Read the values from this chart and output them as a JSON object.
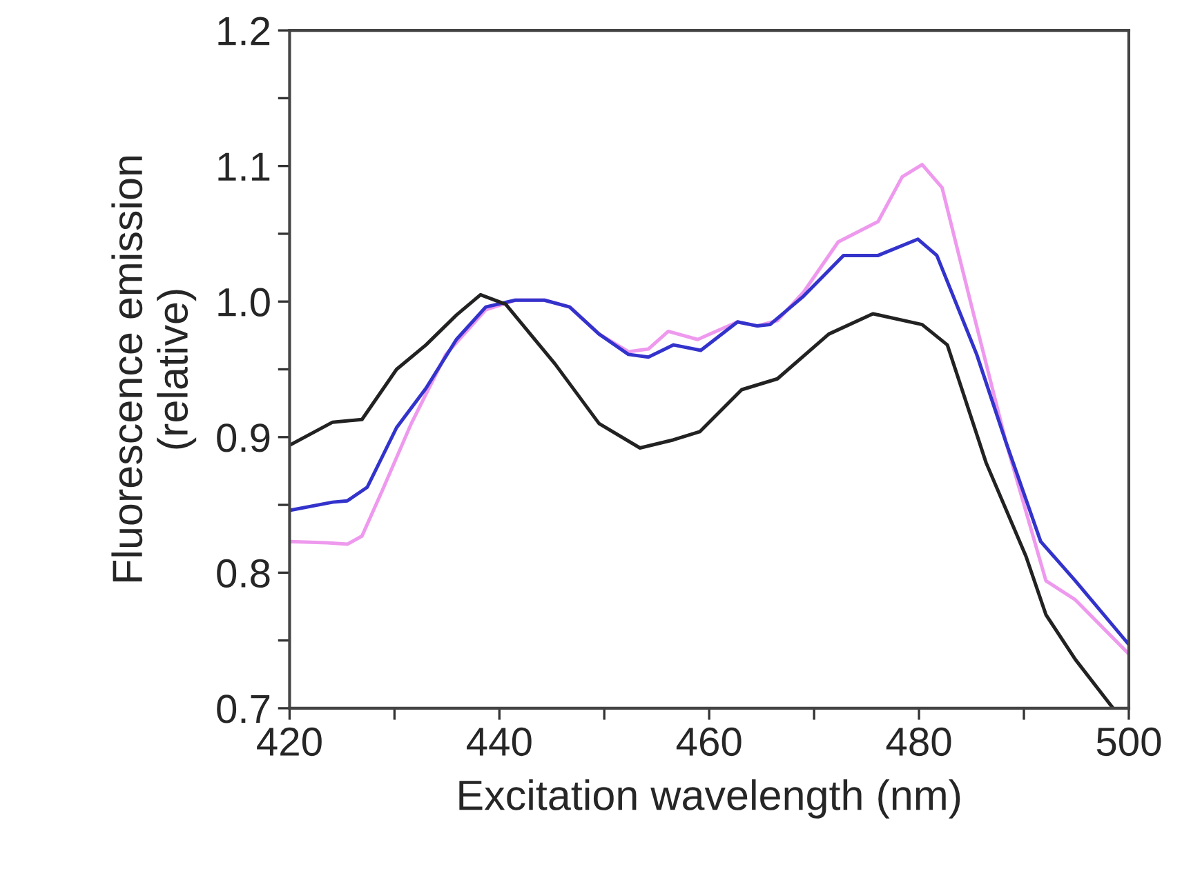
{
  "chart_data": {
    "type": "line",
    "xlabel": "Excitation wavelength (nm)",
    "ylabel": "Fluorescence emission\n(relative)",
    "xlim": [
      420,
      500
    ],
    "ylim": [
      0.7,
      1.2
    ],
    "xticks": [
      420,
      {
        "value": 430,
        "label": null
      },
      440,
      {
        "value": 450,
        "label": null
      },
      460,
      {
        "value": 470,
        "label": null
      },
      480,
      {
        "value": 490,
        "label": null
      },
      500
    ],
    "yticks": [
      {
        "value": 0.7,
        "label": "0.7"
      },
      {
        "value": 0.75,
        "label": null
      },
      {
        "value": 0.8,
        "label": "0.8"
      },
      {
        "value": 0.85,
        "label": null
      },
      {
        "value": 0.9,
        "label": "0.9"
      },
      {
        "value": 0.95,
        "label": null
      },
      {
        "value": 1.0,
        "label": "1.0"
      },
      {
        "value": 1.05,
        "label": null
      },
      {
        "value": 1.1,
        "label": "1.1"
      },
      {
        "value": 1.15,
        "label": null
      },
      {
        "value": 1.2,
        "label": "1.2"
      }
    ],
    "grid": false,
    "line_style": "solid",
    "series": [
      {
        "color": "#ee99ee",
        "x": [
          420,
          423.6,
          425.5,
          426.9,
          428.8,
          431.6,
          434.9,
          438.7,
          441.5,
          444.3,
          446.7,
          449.5,
          452.3,
          454.2,
          456.1,
          458.9,
          462.7,
          464.6,
          466.5,
          469,
          472.3,
          476.1,
          478.4,
          480.3,
          482.2,
          485.0,
          488.3,
          492.1,
          494.9,
          500
        ],
        "values": [
          0.823,
          0.822,
          0.821,
          0.827,
          0.86,
          0.91,
          0.961,
          0.994,
          1.001,
          1.001,
          0.996,
          0.976,
          0.963,
          0.965,
          0.978,
          0.972,
          0.985,
          0.982,
          0.986,
          1.007,
          1.044,
          1.059,
          1.092,
          1.101,
          1.084,
          0.997,
          0.896,
          0.794,
          0.78,
          0.74
        ]
      },
      {
        "color": "#3333cc",
        "x": [
          420,
          424.1,
          425.5,
          427.4,
          430.2,
          433,
          435.9,
          438.7,
          441.5,
          444.3,
          446.7,
          449.5,
          452.3,
          454.2,
          456.6,
          459.2,
          462.7,
          464.6,
          465.8,
          469.0,
          472.8,
          476.1,
          479.9,
          481.7,
          485.5,
          488.3,
          491.6,
          494.9,
          500
        ],
        "values": [
          0.846,
          0.852,
          0.853,
          0.863,
          0.907,
          0.936,
          0.972,
          0.996,
          1.001,
          1.001,
          0.996,
          0.976,
          0.961,
          0.959,
          0.968,
          0.964,
          0.985,
          0.982,
          0.983,
          1.004,
          1.034,
          1.034,
          1.046,
          1.034,
          0.961,
          0.896,
          0.823,
          0.794,
          0.747
        ]
      },
      {
        "color": "#222222",
        "x": [
          420,
          424.1,
          426.9,
          430.2,
          433,
          435.9,
          438.2,
          440.6,
          445.3,
          449.5,
          453.4,
          456.6,
          459.1,
          463.1,
          466.5,
          471.4,
          475.6,
          480.3,
          482.7,
          486.4,
          490.2,
          492.1,
          494.9,
          498.5
        ],
        "values": [
          0.894,
          0.911,
          0.913,
          0.95,
          0.968,
          0.99,
          1.005,
          0.998,
          0.954,
          0.91,
          0.892,
          0.898,
          0.904,
          0.935,
          0.943,
          0.976,
          0.991,
          0.983,
          0.968,
          0.881,
          0.812,
          0.769,
          0.736,
          0.7
        ]
      }
    ]
  }
}
